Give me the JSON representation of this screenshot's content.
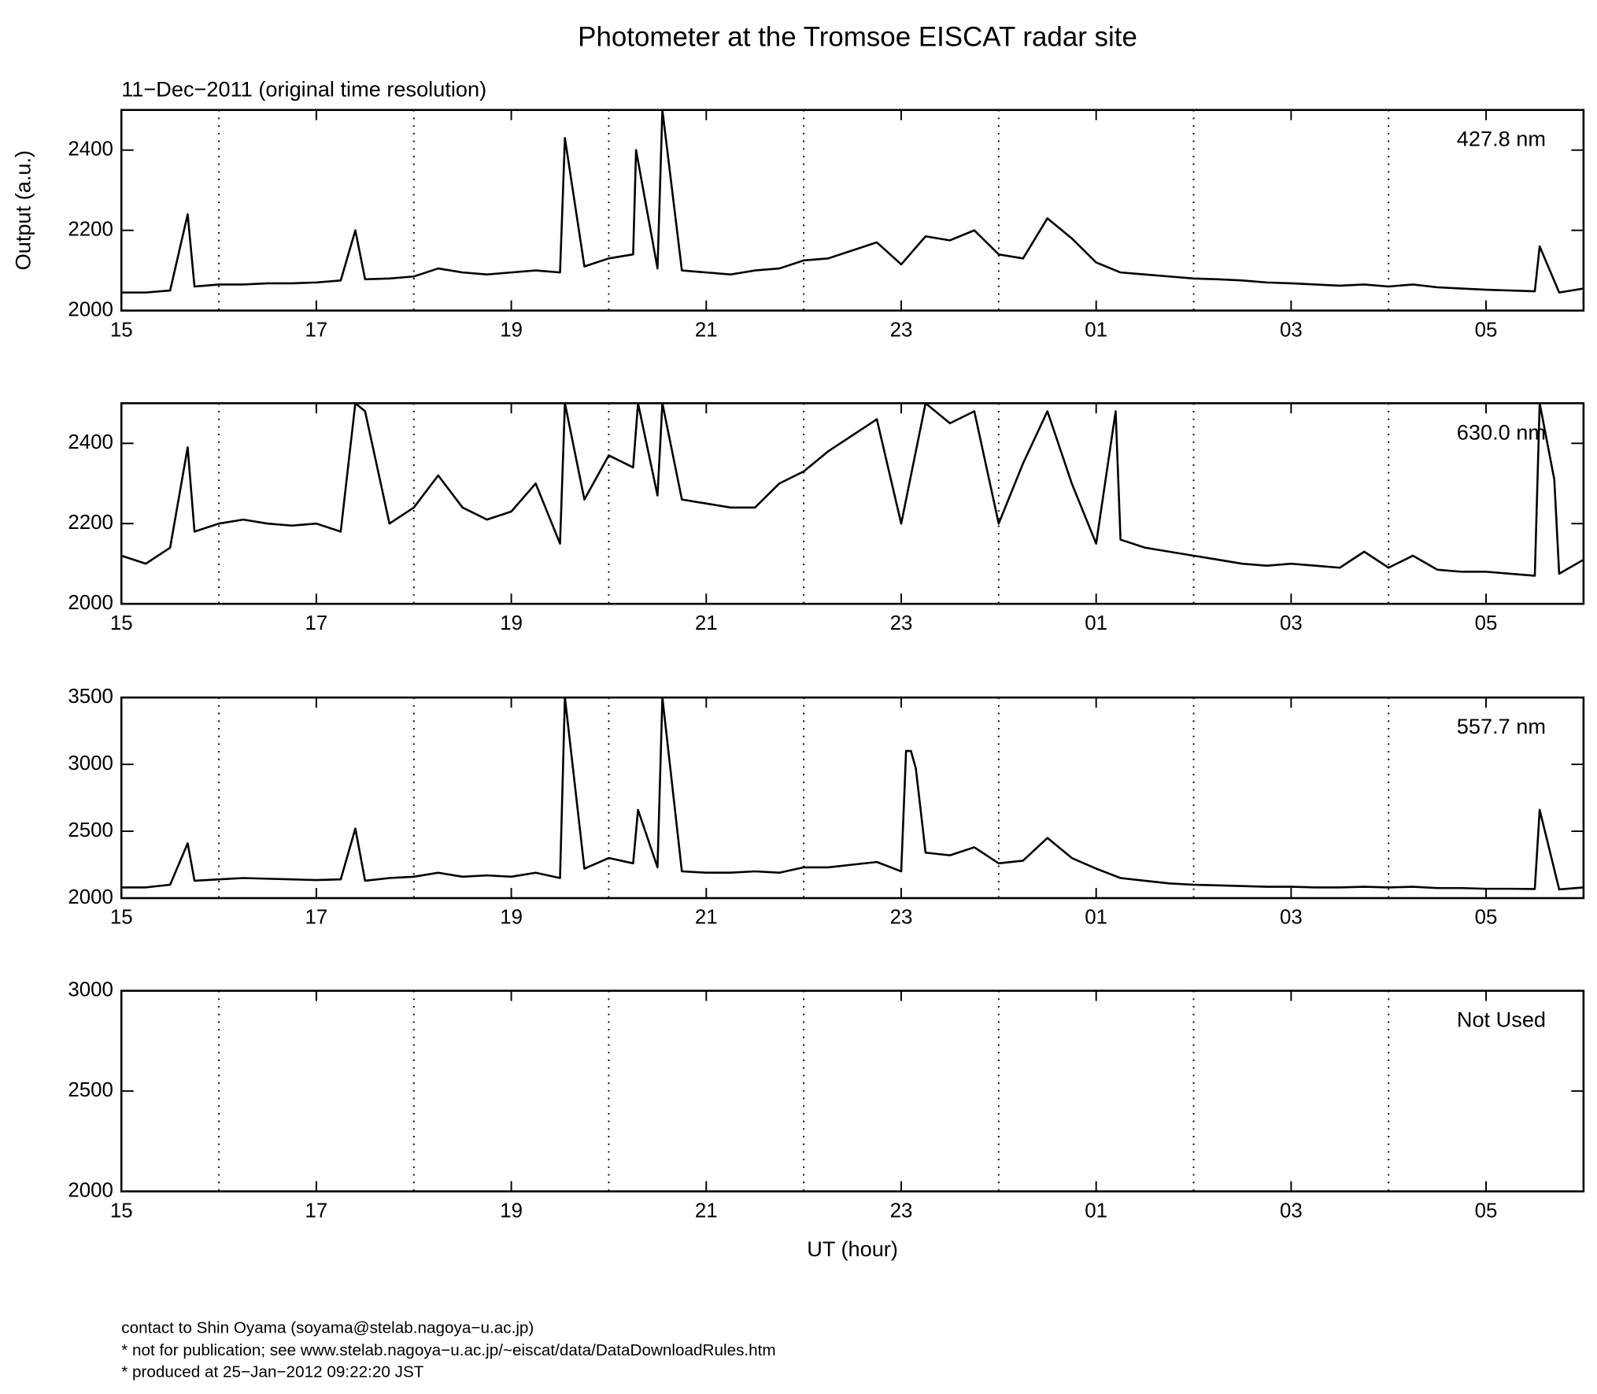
{
  "title": "Photometer at the Tromsoe EISCAT radar site",
  "subtitle": "11−Dec−2011 (original time resolution)",
  "footer": [
    "contact to Shin Oyama (soyama@stelab.nagoya−u.ac.jp)",
    "* not for publication; see www.stelab.nagoya−u.ac.jp/~eiscat/data/DataDownloadRules.htm",
    "* produced at 25−Jan−2012 09:22:20 JST"
  ],
  "chart_data": [
    {
      "type": "line",
      "annotation": "427.8 nm",
      "ylabel": "Output (a.u.)",
      "color": "#000000",
      "xlim": [
        15,
        30
      ],
      "xticks": [
        15,
        17,
        19,
        21,
        23,
        {
          "value": 25,
          "label": "01"
        },
        {
          "value": 27,
          "label": "03"
        },
        {
          "value": 29,
          "label": "05"
        }
      ],
      "xgrid": [
        16,
        18,
        20,
        22,
        24,
        26,
        28
      ],
      "ylim": [
        2000,
        2500
      ],
      "yticks": [
        2000,
        2200,
        2400
      ],
      "x": [
        15,
        15.25,
        15.5,
        15.68,
        15.75,
        16,
        16.25,
        16.5,
        16.75,
        17,
        17.25,
        17.4,
        17.5,
        17.75,
        18,
        18.25,
        18.5,
        18.75,
        19,
        19.25,
        19.5,
        19.55,
        19.75,
        20,
        20.25,
        20.28,
        20.5,
        20.55,
        20.75,
        21,
        21.25,
        21.5,
        21.75,
        22,
        22.25,
        22.5,
        22.75,
        23,
        23.25,
        23.5,
        23.75,
        24,
        24.25,
        24.5,
        24.75,
        25,
        25.25,
        25.5,
        25.75,
        26,
        26.25,
        26.5,
        26.75,
        27,
        27.25,
        27.5,
        27.75,
        28,
        28.25,
        28.5,
        28.75,
        29,
        29.25,
        29.5,
        29.55,
        29.75,
        30
      ],
      "values": [
        2045,
        2045,
        2050,
        2240,
        2060,
        2065,
        2065,
        2068,
        2068,
        2070,
        2075,
        2200,
        2078,
        2080,
        2085,
        2105,
        2095,
        2090,
        2095,
        2100,
        2095,
        2430,
        2110,
        2130,
        2140,
        2400,
        2105,
        2500,
        2100,
        2095,
        2090,
        2100,
        2105,
        2125,
        2130,
        2150,
        2170,
        2115,
        2185,
        2175,
        2200,
        2140,
        2130,
        2230,
        2180,
        2120,
        2095,
        2090,
        2085,
        2080,
        2078,
        2075,
        2070,
        2068,
        2065,
        2062,
        2065,
        2060,
        2065,
        2058,
        2055,
        2052,
        2050,
        2048,
        2160,
        2045,
        2055
      ]
    },
    {
      "type": "line",
      "annotation": "630.0 nm",
      "color": "#000000",
      "xlim": [
        15,
        30
      ],
      "xticks": [
        15,
        17,
        19,
        21,
        23,
        {
          "value": 25,
          "label": "01"
        },
        {
          "value": 27,
          "label": "03"
        },
        {
          "value": 29,
          "label": "05"
        }
      ],
      "xgrid": [
        16,
        18,
        20,
        22,
        24,
        26,
        28
      ],
      "ylim": [
        2000,
        2500
      ],
      "yticks": [
        2000,
        2200,
        2400
      ],
      "x": [
        15,
        15.25,
        15.5,
        15.68,
        15.75,
        16,
        16.25,
        16.5,
        16.75,
        17,
        17.25,
        17.4,
        17.5,
        17.75,
        18,
        18.25,
        18.5,
        18.75,
        19,
        19.25,
        19.5,
        19.55,
        19.75,
        20,
        20.25,
        20.3,
        20.5,
        20.55,
        20.75,
        21,
        21.25,
        21.5,
        21.75,
        22,
        22.25,
        22.5,
        22.75,
        23,
        23.25,
        23.5,
        23.75,
        24,
        24.25,
        24.5,
        24.75,
        25,
        25.2,
        25.25,
        25.5,
        25.75,
        26,
        26.25,
        26.5,
        26.75,
        27,
        27.25,
        27.5,
        27.75,
        28,
        28.25,
        28.5,
        28.75,
        29,
        29.25,
        29.5,
        29.55,
        29.7,
        29.75,
        30
      ],
      "values": [
        2120,
        2100,
        2140,
        2390,
        2180,
        2200,
        2210,
        2200,
        2195,
        2200,
        2180,
        2500,
        2480,
        2200,
        2240,
        2320,
        2240,
        2210,
        2230,
        2300,
        2150,
        2500,
        2260,
        2370,
        2340,
        2500,
        2270,
        2500,
        2260,
        2250,
        2240,
        2240,
        2300,
        2330,
        2380,
        2420,
        2460,
        2200,
        2500,
        2450,
        2480,
        2200,
        2350,
        2480,
        2300,
        2150,
        2480,
        2160,
        2140,
        2130,
        2120,
        2110,
        2100,
        2095,
        2100,
        2095,
        2090,
        2130,
        2090,
        2120,
        2085,
        2080,
        2080,
        2075,
        2070,
        2500,
        2310,
        2075,
        2110
      ]
    },
    {
      "type": "line",
      "annotation": "557.7 nm",
      "color": "#000000",
      "xlim": [
        15,
        30
      ],
      "xticks": [
        15,
        17,
        19,
        21,
        23,
        {
          "value": 25,
          "label": "01"
        },
        {
          "value": 27,
          "label": "03"
        },
        {
          "value": 29,
          "label": "05"
        }
      ],
      "xgrid": [
        16,
        18,
        20,
        22,
        24,
        26,
        28
      ],
      "ylim": [
        2000,
        3500
      ],
      "yticks": [
        2000,
        2500,
        3000,
        3500
      ],
      "x": [
        15,
        15.25,
        15.5,
        15.68,
        15.75,
        16,
        16.25,
        16.5,
        16.75,
        17,
        17.25,
        17.4,
        17.5,
        17.75,
        18,
        18.25,
        18.5,
        18.75,
        19,
        19.25,
        19.5,
        19.55,
        19.75,
        20,
        20.25,
        20.3,
        20.5,
        20.55,
        20.75,
        21,
        21.25,
        21.5,
        21.75,
        22,
        22.25,
        22.5,
        22.75,
        23,
        23.05,
        23.1,
        23.15,
        23.25,
        23.5,
        23.75,
        24,
        24.25,
        24.5,
        24.75,
        25,
        25.25,
        25.5,
        25.75,
        26,
        26.25,
        26.5,
        26.75,
        27,
        27.25,
        27.5,
        27.75,
        28,
        28.25,
        28.5,
        28.75,
        29,
        29.25,
        29.5,
        29.55,
        29.75,
        30
      ],
      "values": [
        2080,
        2080,
        2100,
        2410,
        2130,
        2140,
        2150,
        2145,
        2140,
        2135,
        2140,
        2520,
        2130,
        2150,
        2160,
        2190,
        2160,
        2170,
        2160,
        2190,
        2150,
        3500,
        2220,
        2300,
        2260,
        2660,
        2230,
        3500,
        2200,
        2190,
        2190,
        2200,
        2190,
        2230,
        2230,
        2250,
        2270,
        2200,
        3100,
        3100,
        2970,
        2340,
        2320,
        2380,
        2260,
        2280,
        2450,
        2300,
        2220,
        2150,
        2130,
        2110,
        2100,
        2095,
        2090,
        2085,
        2085,
        2080,
        2080,
        2085,
        2080,
        2085,
        2075,
        2075,
        2070,
        2070,
        2068,
        2660,
        2065,
        2080
      ]
    },
    {
      "type": "line",
      "annotation": "Not Used",
      "xlabel": "UT (hour)",
      "xlim": [
        15,
        30
      ],
      "xticks": [
        15,
        17,
        19,
        21,
        23,
        {
          "value": 25,
          "label": "01"
        },
        {
          "value": 27,
          "label": "03"
        },
        {
          "value": 29,
          "label": "05"
        }
      ],
      "xgrid": [
        16,
        18,
        20,
        22,
        24,
        26,
        28
      ],
      "ylim": [
        2000,
        3000
      ],
      "yticks": [
        2000,
        2500,
        3000
      ]
    }
  ]
}
